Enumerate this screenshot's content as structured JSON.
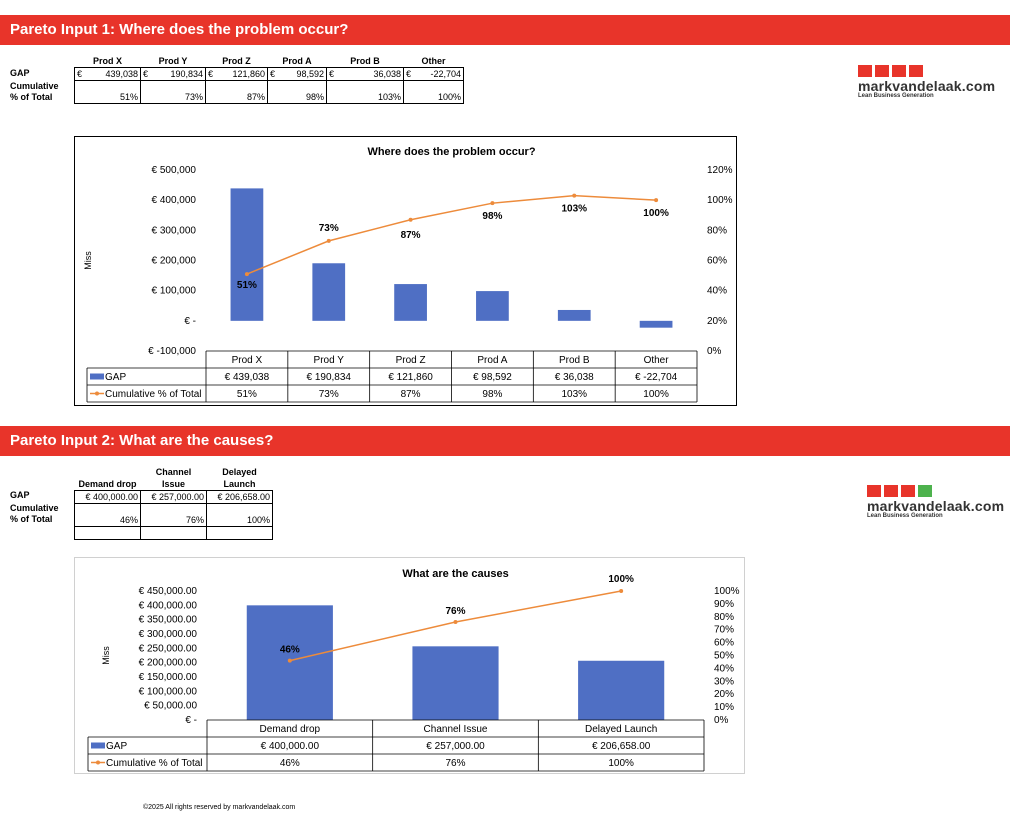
{
  "section1": {
    "title": "Pareto Input 1: Where does the problem occur?",
    "row_labels": {
      "gap": "GAP",
      "cum1": "Cumulative",
      "cum2": "% of Total"
    },
    "currency": "€",
    "columns": [
      "Prod X",
      "Prod Y",
      "Prod Z",
      "Prod A",
      "Prod B",
      "Other"
    ],
    "gap_values": [
      "439,038",
      "190,834",
      "121,860",
      "98,592",
      "36,038",
      "-22,704"
    ],
    "cum_values": [
      "51%",
      "73%",
      "87%",
      "98%",
      "103%",
      "100%"
    ]
  },
  "section2": {
    "title": "Pareto Input 2: What are the causes?",
    "row_labels": {
      "gap": "GAP",
      "cum1": "Cumulative",
      "cum2": "% of Total"
    },
    "columns_line1": [
      "",
      "Channel",
      "Delayed"
    ],
    "columns_line2": [
      "Demand drop",
      "Issue",
      "Launch"
    ],
    "gap_values": [
      "€  400,000.00",
      "€  257,000.00",
      "€  206,658.00"
    ],
    "cum_values": [
      "46%",
      "76%",
      "100%"
    ]
  },
  "logo": {
    "name": "markvandelaak.com",
    "tagline": "Lean Business Generation"
  },
  "footer": "©2025 All rights reserved by markvandelaak.com",
  "colors": {
    "band": "#e8342a",
    "bar": "#4f6fc4",
    "line": "#ed8b3b",
    "logo_red": "#e8342a",
    "logo_green": "#4db24d"
  },
  "chart_data": [
    {
      "type": "bar",
      "title": "Where does the problem occur?",
      "ylabel": "Miss",
      "categories": [
        "Prod X",
        "Prod Y",
        "Prod Z",
        "Prod A",
        "Prod B",
        "Other"
      ],
      "series": [
        {
          "name": "GAP",
          "kind": "bar",
          "values": [
            439038,
            190834,
            121860,
            98592,
            36038,
            -22704
          ],
          "table_labels": [
            "€ 439,038",
            "€ 190,834",
            "€ 121,860",
            "€ 98,592",
            "€ 36,038",
            "€ -22,704"
          ]
        },
        {
          "name": "Cumulative % of Total",
          "kind": "line",
          "axis": "secondary",
          "values": [
            51,
            73,
            87,
            98,
            103,
            100
          ],
          "table_labels": [
            "51%",
            "73%",
            "87%",
            "98%",
            "103%",
            "100%"
          ]
        }
      ],
      "ylim": [
        -100000,
        500000
      ],
      "y_ticks": [
        "€ 500,000",
        "€ 400,000",
        "€ 300,000",
        "€ 200,000",
        "€ 100,000",
        "€ -",
        "€ -100,000"
      ],
      "y2lim": [
        0,
        120
      ],
      "y2_ticks": [
        "120%",
        "100%",
        "80%",
        "60%",
        "40%",
        "20%",
        "0%"
      ],
      "data_labels": [
        "51%",
        "73%",
        "87%",
        "98%",
        "103%",
        "100%"
      ],
      "grid": false,
      "legend": "data table"
    },
    {
      "type": "bar",
      "title": "What are the causes",
      "ylabel": "Miss",
      "categories": [
        "Demand drop",
        "Channel Issue",
        "Delayed Launch"
      ],
      "series": [
        {
          "name": "GAP",
          "kind": "bar",
          "values": [
            400000,
            257000,
            206658
          ],
          "table_labels": [
            "€ 400,000.00",
            "€ 257,000.00",
            "€ 206,658.00"
          ]
        },
        {
          "name": "Cumulative % of Total",
          "kind": "line",
          "axis": "secondary",
          "values": [
            46,
            76,
            100
          ],
          "table_labels": [
            "46%",
            "76%",
            "100%"
          ]
        }
      ],
      "ylim": [
        0,
        450000
      ],
      "y_ticks": [
        "€ 450,000.00",
        "€ 400,000.00",
        "€ 350,000.00",
        "€ 300,000.00",
        "€ 250,000.00",
        "€ 200,000.00",
        "€ 150,000.00",
        "€ 100,000.00",
        "€ 50,000.00",
        "€ -"
      ],
      "y2lim": [
        0,
        100
      ],
      "y2_ticks": [
        "100%",
        "90%",
        "80%",
        "70%",
        "60%",
        "50%",
        "40%",
        "30%",
        "20%",
        "10%",
        "0%"
      ],
      "data_labels": [
        "46%",
        "76%",
        "100%"
      ],
      "grid": false,
      "legend": "data table"
    }
  ]
}
